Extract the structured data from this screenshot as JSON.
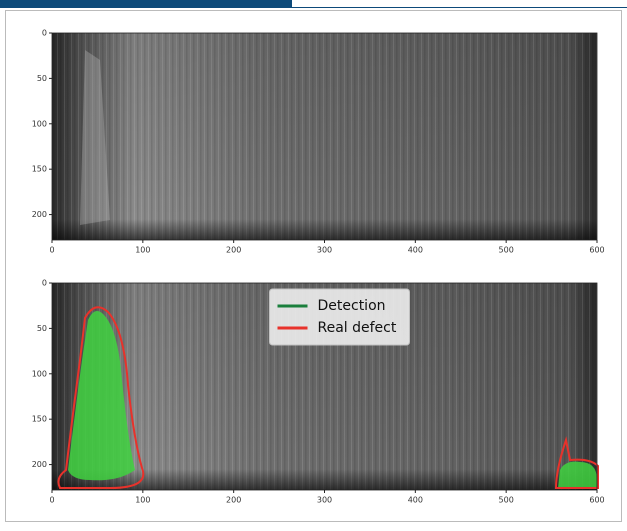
{
  "chart_data": [
    {
      "type": "image",
      "xlim": [
        0,
        600
      ],
      "ylim": [
        228,
        0
      ],
      "xticks": [
        0,
        100,
        200,
        300,
        400,
        500,
        600
      ],
      "yticks": [
        0,
        50,
        100,
        150,
        200
      ]
    },
    {
      "type": "image",
      "xlim": [
        0,
        600
      ],
      "ylim": [
        228,
        0
      ],
      "xticks": [
        0,
        100,
        200,
        300,
        400,
        500,
        600
      ],
      "yticks": [
        0,
        50,
        100,
        150,
        200
      ],
      "series": [
        {
          "name": "Detection",
          "color": "#1a7f3c"
        },
        {
          "name": "Real defect",
          "color": "#e8322b"
        }
      ],
      "legend": "upper center"
    }
  ]
}
